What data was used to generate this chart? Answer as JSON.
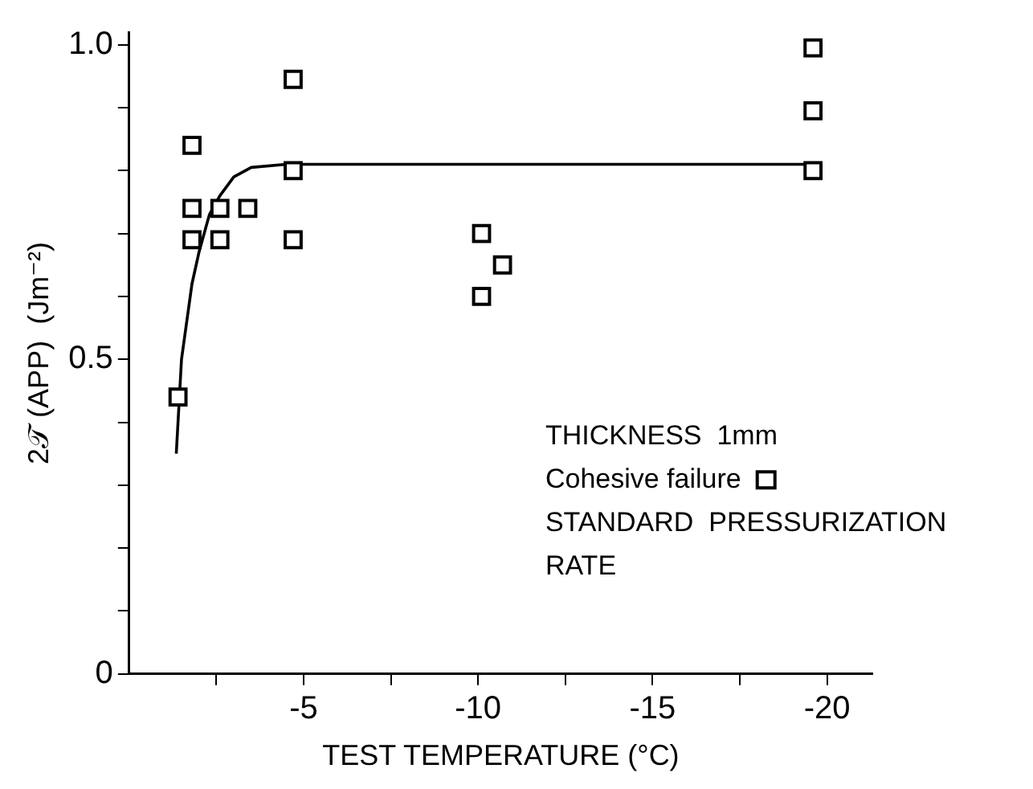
{
  "chart_data": {
    "type": "scatter",
    "xlabel": "TEST TEMPERATURE (°C)",
    "ylabel": "2𝒯 (APP)  (Jm⁻²)",
    "annotations": [
      "THICKNESS  1mm",
      "STANDARD  PRESSURIZATION RATE"
    ],
    "series": [
      {
        "name": "Cohesive failure",
        "color": "#000000",
        "marker": "square",
        "x": [
          -1.4,
          -1.8,
          -1.8,
          -2.6,
          -3.4,
          -1.8,
          -2.6,
          -4.7,
          -4.7,
          -4.7,
          -10.1,
          -10.7,
          -10.1,
          -19.6,
          -19.6,
          -19.6
        ],
        "values": [
          0.44,
          0.84,
          0.74,
          0.74,
          0.74,
          0.69,
          0.69,
          0.945,
          0.8,
          0.69,
          0.7,
          0.65,
          0.6,
          0.995,
          0.895,
          0.8
        ]
      },
      {
        "type": "line",
        "color": "#000000",
        "marker": "none",
        "line_style": "solid",
        "x": [
          -1.35,
          -1.5,
          -1.8,
          -2.0,
          -2.3,
          -2.6,
          -3.0,
          -3.5,
          -4.5,
          -19.5
        ],
        "values": [
          0.35,
          0.5,
          0.62,
          0.67,
          0.73,
          0.76,
          0.79,
          0.805,
          0.81,
          0.81
        ]
      }
    ],
    "xlim": [
      0,
      -21.3
    ],
    "ylim": [
      0,
      1.02
    ],
    "xticks": [
      {
        "value": -2.5,
        "label": null
      },
      -5,
      {
        "value": -7.5,
        "label": null
      },
      -10,
      {
        "value": -12.5,
        "label": null
      },
      -15,
      {
        "value": -17.5,
        "label": null
      },
      -20
    ],
    "yticks": [
      0,
      {
        "value": 0.1,
        "label": null
      },
      {
        "value": 0.2,
        "label": null
      },
      {
        "value": 0.3,
        "label": null
      },
      {
        "value": 0.4,
        "label": null
      },
      0.5,
      {
        "value": 0.6,
        "label": null
      },
      {
        "value": 0.7,
        "label": null
      },
      {
        "value": 0.8,
        "label": null
      },
      {
        "value": 0.9,
        "label": null
      },
      {
        "value": 1,
        "label": "1.0"
      }
    ],
    "grid": false,
    "legend": "right"
  }
}
